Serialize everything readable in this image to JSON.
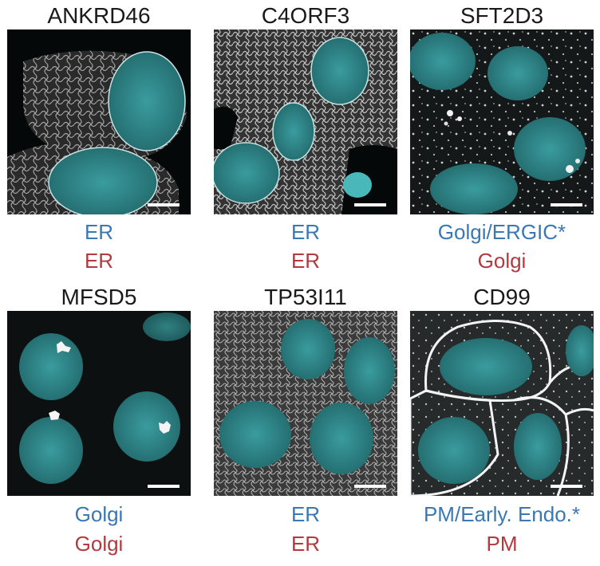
{
  "panels": [
    {
      "gene": "ANKRD46",
      "label_blue": "ER",
      "label_red": "ER",
      "pattern": "er-network"
    },
    {
      "gene": "C4ORF3",
      "label_blue": "ER",
      "label_red": "ER",
      "pattern": "er-network"
    },
    {
      "gene": "SFT2D3",
      "label_blue": "Golgi/ERGIC*",
      "label_red": "Golgi",
      "pattern": "puncta"
    },
    {
      "gene": "MFSD5",
      "label_blue": "Golgi",
      "label_red": "Golgi",
      "pattern": "golgi"
    },
    {
      "gene": "TP53I11",
      "label_blue": "ER",
      "label_red": "ER",
      "pattern": "er-network"
    },
    {
      "gene": "CD99",
      "label_blue": "PM/Early. Endo.*",
      "label_red": "PM",
      "pattern": "membrane"
    }
  ],
  "colors": {
    "label_blue": "#3a78b5",
    "label_red": "#b23a3f",
    "nucleus": "#2f8a8c",
    "stain": "#e8e8e8",
    "background": "#050808"
  }
}
